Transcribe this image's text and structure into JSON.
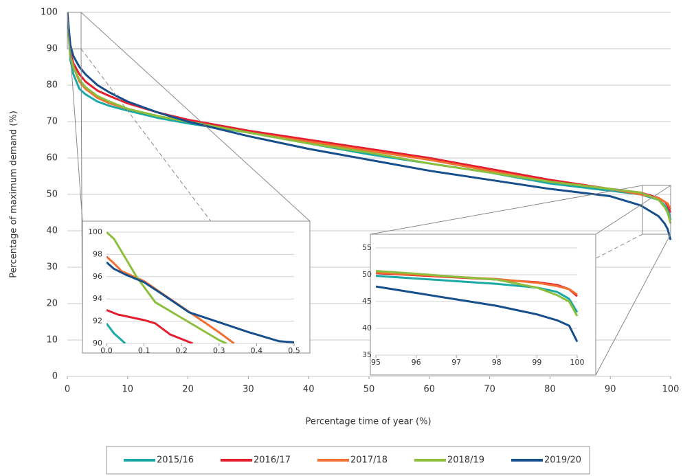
{
  "chart_data": [
    {
      "type": "line",
      "xlabel": "Percentage time of year (%)",
      "ylabel": "Percentage of maximum demand (%)",
      "x": [
        0,
        0.5,
        1,
        2,
        3,
        5,
        7,
        10,
        15,
        20,
        30,
        40,
        50,
        60,
        70,
        80,
        90,
        95,
        98,
        99,
        99.5,
        100
      ],
      "xlim": [
        0,
        100
      ],
      "xticks": [
        0,
        10,
        20,
        30,
        40,
        50,
        60,
        70,
        80,
        90,
        100
      ],
      "ylim": [
        0,
        100
      ],
      "yticks": [
        0,
        10,
        20,
        30,
        40,
        50,
        60,
        70,
        80,
        90,
        100
      ],
      "grid": true,
      "legend": "bottom",
      "series": [
        {
          "name": "2015/16",
          "color": "#1aa9a5",
          "values": [
            100,
            87,
            83,
            79,
            77.5,
            75.5,
            74.3,
            73,
            71,
            69.5,
            67,
            64,
            61,
            58.5,
            56,
            53,
            51,
            50,
            48.5,
            47,
            46,
            43
          ]
        },
        {
          "name": "2016/17",
          "color": "#e41e2f",
          "values": [
            100,
            89,
            86,
            83,
            81,
            78.5,
            77,
            75,
            72.5,
            70.5,
            67.5,
            65,
            62.5,
            60,
            57,
            54,
            51.5,
            50.5,
            49,
            48,
            47,
            45
          ]
        },
        {
          "name": "2017/18",
          "color": "#f26f32",
          "values": [
            100,
            88,
            85,
            81,
            79,
            76.5,
            75,
            73.5,
            71.5,
            70,
            67,
            64.5,
            62,
            59.5,
            56.5,
            53.5,
            51.5,
            50,
            49,
            48,
            47.5,
            46
          ]
        },
        {
          "name": "2018/19",
          "color": "#8dbf3d",
          "values": [
            100,
            88,
            85,
            81.5,
            79.5,
            77,
            75.5,
            73.5,
            71.5,
            70,
            67,
            64,
            61.5,
            58.5,
            56,
            53.5,
            51.5,
            50.5,
            48.5,
            46.5,
            45,
            42
          ]
        },
        {
          "name": "2019/20",
          "color": "#174f8c",
          "values": [
            100,
            91,
            88,
            85,
            83,
            80,
            78,
            75.5,
            72.5,
            70,
            66,
            62.5,
            59.5,
            56.5,
            54,
            51.5,
            49.5,
            47,
            44,
            42,
            40.5,
            37.5
          ]
        }
      ]
    },
    {
      "type": "line",
      "xlim": [
        0,
        0.5
      ],
      "xticks": [
        {
          "value": 0,
          "label": "0.0"
        },
        0.1,
        0.2,
        0.3,
        0.4,
        0.5
      ],
      "ylim": [
        90,
        100
      ],
      "yticks": [
        90,
        92,
        94,
        96,
        98,
        100
      ],
      "grid": true,
      "series": [
        {
          "x": [
            0,
            0.02,
            0.05
          ],
          "values": [
            91.8,
            90.9,
            90
          ]
        },
        {
          "x": [
            0,
            0.03,
            0.1,
            0.13,
            0.17,
            0.23
          ],
          "values": [
            93,
            92.6,
            92.1,
            91.8,
            90.8,
            90
          ]
        },
        {
          "x": [
            0,
            0.02,
            0.04,
            0.1,
            0.2,
            0.3,
            0.34
          ],
          "values": [
            97.8,
            97.2,
            96.5,
            95.6,
            93.3,
            91,
            90
          ]
        },
        {
          "x": [
            0,
            0.02,
            0.05,
            0.08,
            0.13,
            0.2,
            0.3,
            0.32
          ],
          "values": [
            100,
            99.4,
            97.7,
            96,
            93.7,
            92.3,
            90.3,
            90
          ]
        },
        {
          "x": [
            0,
            0.02,
            0.05,
            0.1,
            0.15,
            0.22,
            0.3,
            0.38,
            0.46,
            0.5
          ],
          "values": [
            97.3,
            96.7,
            96.2,
            95.5,
            94.4,
            92.8,
            91.9,
            91,
            90.2,
            90.1
          ]
        }
      ]
    },
    {
      "type": "line",
      "xlim": [
        95,
        100
      ],
      "xticks": [
        95,
        96,
        97,
        98,
        99,
        100
      ],
      "ylim": [
        35,
        55
      ],
      "yticks": [
        35,
        40,
        45,
        50,
        55
      ],
      "grid": true,
      "series": [
        {
          "x": [
            95,
            96,
            97,
            98,
            99,
            99.5,
            99.8,
            100
          ],
          "values": [
            49.8,
            49.3,
            48.8,
            48.3,
            47.6,
            46.8,
            45.5,
            43
          ]
        },
        {
          "x": [
            95,
            96,
            97,
            98,
            99,
            99.5,
            99.8,
            100
          ],
          "values": [
            50.3,
            49.9,
            49.5,
            49.1,
            48.6,
            48.1,
            47.3,
            46
          ]
        },
        {
          "x": [
            95,
            96,
            97,
            98,
            99,
            99.5,
            99.8,
            100
          ],
          "values": [
            50.4,
            50,
            49.6,
            49.2,
            48.5,
            47.9,
            47.3,
            46.3
          ]
        },
        {
          "x": [
            95,
            96,
            97,
            98,
            99,
            99.5,
            99.8,
            100
          ],
          "values": [
            50.7,
            50.2,
            49.6,
            49.1,
            47.6,
            46.2,
            45,
            42.3
          ]
        },
        {
          "x": [
            95,
            96,
            97,
            98,
            99,
            99.5,
            99.8,
            100
          ],
          "values": [
            47.8,
            46.6,
            45.4,
            44.2,
            42.6,
            41.5,
            40.5,
            37.5
          ]
        }
      ]
    }
  ]
}
